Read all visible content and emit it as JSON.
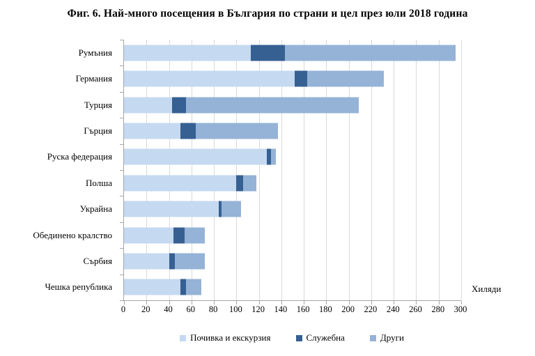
{
  "chart_data": {
    "type": "bar",
    "orientation": "horizontal",
    "stacked": true,
    "title": "Фиг. 6. Най-много посещения в България по страни и цел през юли 2018 година",
    "xlabel": "Хиляди",
    "ylabel": "",
    "xlim": [
      0,
      300
    ],
    "xticks": [
      0,
      20,
      40,
      60,
      80,
      100,
      120,
      140,
      160,
      180,
      200,
      220,
      240,
      260,
      280,
      300
    ],
    "grid": true,
    "legend_position": "bottom-center",
    "categories": [
      "Румъния",
      "Германия",
      "Турция",
      "Гърция",
      "Руска федерация",
      "Полша",
      "Украйна",
      "Обединено кралство",
      "Сърбия",
      "Чешка република"
    ],
    "series": [
      {
        "name": "Почивка и екскурзия",
        "color": "#c5d9f1",
        "values": [
          113,
          152,
          43,
          50,
          127,
          100,
          84,
          44,
          40,
          50
        ]
      },
      {
        "name": "Служебна",
        "color": "#366092",
        "values": [
          30,
          11,
          12,
          14,
          4,
          6,
          3,
          10,
          5,
          5
        ]
      },
      {
        "name": "Други",
        "color": "#95b3d7",
        "values": [
          152,
          68,
          154,
          73,
          4,
          12,
          17,
          18,
          27,
          14
        ]
      }
    ]
  },
  "colors": {
    "gridline": "#d9d9d9",
    "axis": "#a6a6a6",
    "text": "#000000"
  }
}
